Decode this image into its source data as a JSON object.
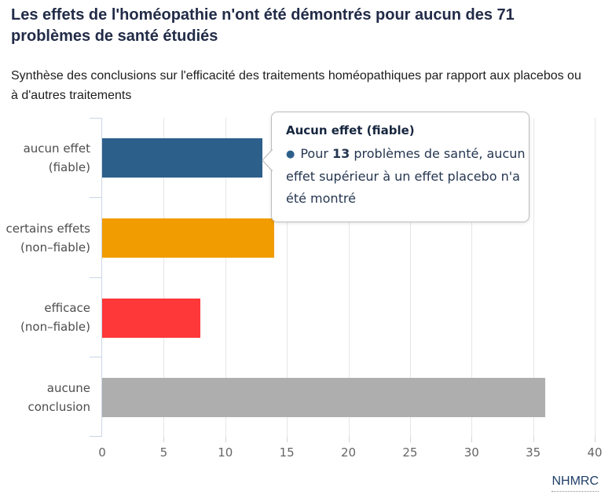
{
  "header": {
    "title": "Les effets de l'homéopathie n'ont été démontrés pour aucun des 71 problèmes de santé étudiés",
    "subtitle": "Synthèse des conclusions sur l'efficacité des traitements homéopathiques par rapport aux placebos ou à d'autres traitements"
  },
  "chart_data": {
    "type": "bar",
    "orientation": "horizontal",
    "title": "Les effets de l'homéopathie n'ont été démontrés pour aucun des 71 problèmes de santé étudiés",
    "subtitle": "Synthèse des conclusions sur l'efficacité des traitements homéopathiques par rapport aux placebos ou à d'autres traitements",
    "categories": [
      "aucun effet (fiable)",
      "certains effets (non–fiable)",
      "efficace (non–fiable)",
      "aucune conclusion"
    ],
    "category_lines": [
      [
        "aucun effet",
        "(fiable)"
      ],
      [
        "certains effets",
        "(non–fiable)"
      ],
      [
        "efficace",
        "(non–fiable)"
      ],
      [
        "aucune",
        "conclusion"
      ]
    ],
    "values": [
      13,
      14,
      8,
      36
    ],
    "bar_colors": [
      "#2d5f8b",
      "#f19c00",
      "#fe3839",
      "#aeaeae"
    ],
    "xlim": [
      0,
      40
    ],
    "x_ticks": [
      0,
      5,
      10,
      15,
      20,
      25,
      30,
      35,
      40
    ],
    "grid": true,
    "legend": "none",
    "source": "NHMRC"
  },
  "tooltip": {
    "title": "Aucun effet (fiable)",
    "bullet": "●",
    "line1_pre": "Pour ",
    "line1_value": "13",
    "line1_post": " problèmes de santé, aucun",
    "line2": "effet supérieur à un effet placebo n'a",
    "line3": "été montré"
  },
  "footer": {
    "source_label": "NHMRC"
  },
  "colors": {
    "title_text": "#222c48",
    "category_text": "#4d4d4d",
    "tick_text": "#666666",
    "gridline": "#e6e6e6",
    "axis_line": "#c9d6e6",
    "tooltip_border": "#bdbdbd",
    "tooltip_text": "#253650",
    "source_link": "#1f3f68"
  }
}
